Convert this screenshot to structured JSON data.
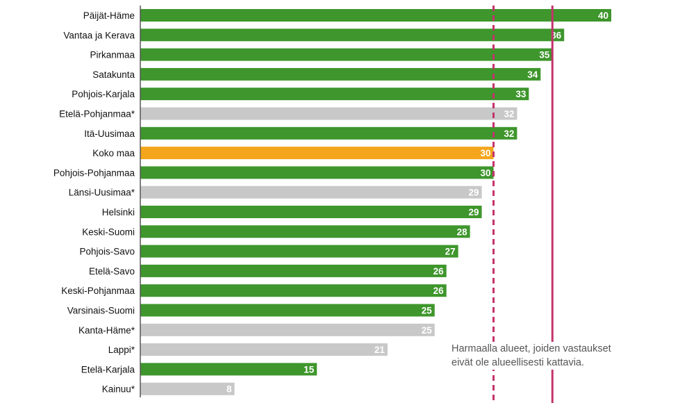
{
  "chart_data": {
    "type": "bar",
    "orientation": "horizontal",
    "categories": [
      "Päijät-Häme",
      "Vantaa ja Kerava",
      "Pirkanmaa",
      "Satakunta",
      "Pohjois-Karjala",
      "Etelä-Pohjanmaa*",
      "Itä-Uusimaa",
      "Koko maa",
      "Pohjois-Pohjanmaa",
      "Länsi-Uusimaa*",
      "Helsinki",
      "Keski-Suomi",
      "Pohjois-Savo",
      "Etelä-Savo",
      "Keski-Pohjanmaa",
      "Varsinais-Suomi",
      "Kanta-Häme*",
      "Lappi*",
      "Etelä-Karjala",
      "Kainuu*"
    ],
    "values": [
      40,
      36,
      35,
      34,
      33,
      32,
      32,
      30,
      30,
      29,
      29,
      28,
      27,
      26,
      26,
      25,
      25,
      21,
      15,
      8
    ],
    "value_labels": [
      "40",
      "36",
      "35",
      "34",
      "33",
      "32",
      "32",
      "30",
      "30",
      "29",
      "29",
      "28",
      "27",
      "26",
      "26",
      "25",
      "25",
      "21",
      "15",
      "8"
    ],
    "bar_group": [
      "covered",
      "covered",
      "covered",
      "covered",
      "covered",
      "not_covered",
      "covered",
      "total",
      "covered",
      "not_covered",
      "covered",
      "covered",
      "covered",
      "covered",
      "covered",
      "covered",
      "not_covered",
      "not_covered",
      "covered",
      "not_covered"
    ],
    "colors": {
      "covered": "#3e962c",
      "not_covered": "#c8c8c8",
      "total": "#f4a51c",
      "reference_line": "#c4336c",
      "axis": "#555555"
    },
    "reference_lines": [
      {
        "value": 30,
        "style": "dashed"
      },
      {
        "value": 35,
        "style": "solid"
      }
    ],
    "xlim": [
      0,
      44
    ],
    "note": "Harmaalla alueet, joiden vastaukset\neivät ole alueellisesti kattavia."
  }
}
